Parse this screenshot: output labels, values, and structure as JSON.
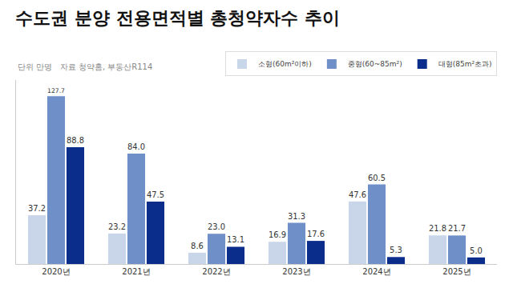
{
  "chart_data": {
    "type": "bar",
    "title": "수도권 분양 전용면적별 총청약자수 추이",
    "subtitle": "단위 만명   자료 청약홈, 부동산R114",
    "categories": [
      "2020년",
      "2021년",
      "2022년",
      "2023년",
      "2024년",
      "2025년"
    ],
    "series": [
      {
        "name": "소형(60m²이하)",
        "color": "#c9d6ea",
        "values": [
          37.2,
          23.2,
          8.6,
          16.9,
          47.6,
          21.8
        ],
        "value_labels": [
          "37.2",
          "23.2",
          "8.6",
          "16.9",
          "47.6",
          "21.8"
        ]
      },
      {
        "name": "중형(60~85m²)",
        "color": "#6f8fc8",
        "values": [
          127.7,
          84.0,
          23.0,
          31.3,
          60.5,
          21.7
        ],
        "value_labels": [
          "127.7",
          "84.0",
          "23.0",
          "31.3",
          "60.5",
          "21.7"
        ]
      },
      {
        "name": "대형(85m²초과)",
        "color": "#0a2d8c",
        "values": [
          88.8,
          47.5,
          13.1,
          17.6,
          5.3,
          5.0
        ],
        "value_labels": [
          "88.8",
          "47.5",
          "13.1",
          "17.6",
          "5.3",
          "5.0"
        ]
      }
    ],
    "ylim": [
      0,
      140
    ],
    "grid": false,
    "legend": "top right",
    "data_labels": true,
    "tick_labels": "x"
  }
}
